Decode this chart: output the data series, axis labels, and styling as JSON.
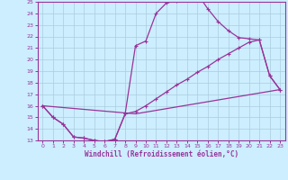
{
  "xlabel": "Windchill (Refroidissement éolien,°C)",
  "bg_color": "#cceeff",
  "grid_color": "#aaccdd",
  "line_color": "#993399",
  "xlim": [
    -0.5,
    23.5
  ],
  "ylim": [
    13,
    25
  ],
  "xticks": [
    0,
    1,
    2,
    3,
    4,
    5,
    6,
    7,
    8,
    9,
    10,
    11,
    12,
    13,
    14,
    15,
    16,
    17,
    18,
    19,
    20,
    21,
    22,
    23
  ],
  "yticks": [
    13,
    14,
    15,
    16,
    17,
    18,
    19,
    20,
    21,
    22,
    23,
    24,
    25
  ],
  "line1_x": [
    0,
    1,
    2,
    3,
    4,
    5,
    6,
    7,
    8,
    9,
    10,
    11,
    12,
    13,
    14,
    15,
    16,
    17,
    18,
    19,
    20,
    21,
    22,
    23
  ],
  "line1_y": [
    16.0,
    15.0,
    14.4,
    13.3,
    13.2,
    13.0,
    12.9,
    13.1,
    15.3,
    21.2,
    21.6,
    24.0,
    24.9,
    25.1,
    25.3,
    25.7,
    24.4,
    23.3,
    22.5,
    21.9,
    21.8,
    21.7,
    18.6,
    17.4
  ],
  "line2_x": [
    0,
    1,
    2,
    3,
    4,
    5,
    6,
    7,
    8,
    9,
    10,
    11,
    12,
    13,
    14,
    15,
    16,
    17,
    18,
    19,
    20,
    21,
    22,
    23
  ],
  "line2_y": [
    16.0,
    15.0,
    14.4,
    13.3,
    13.2,
    13.0,
    12.9,
    13.1,
    15.3,
    15.5,
    16.0,
    16.6,
    17.2,
    17.8,
    18.3,
    18.9,
    19.4,
    20.0,
    20.5,
    21.0,
    21.5,
    21.7,
    18.6,
    17.4
  ],
  "line3_x": [
    0,
    9,
    23
  ],
  "line3_y": [
    16.0,
    15.3,
    17.4
  ]
}
